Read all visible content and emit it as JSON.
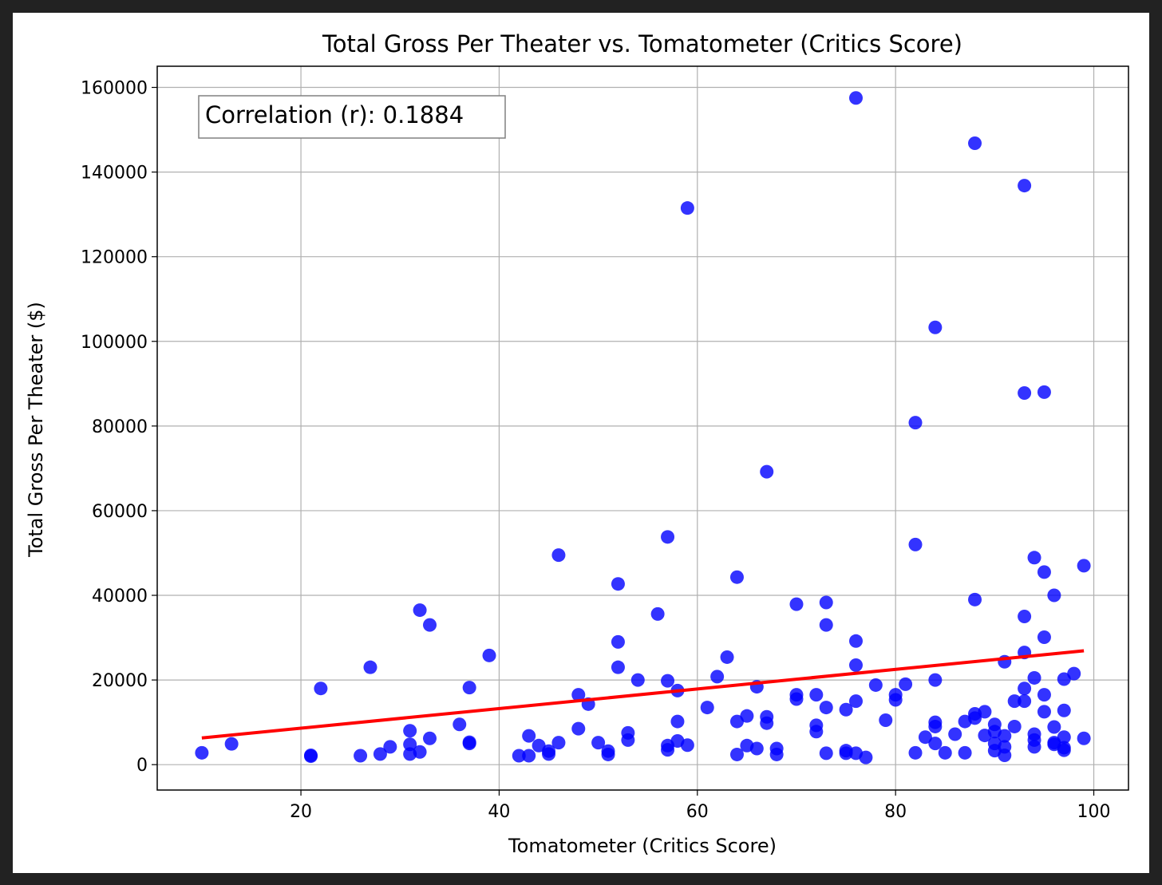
{
  "chart_data": {
    "type": "scatter",
    "title": "Total Gross Per Theater vs. Tomatometer (Critics Score)",
    "xlabel": "Tomatometer (Critics Score)",
    "ylabel": "Total Gross Per Theater ($)",
    "xlim": [
      5.5,
      103.5
    ],
    "ylim": [
      -6000,
      165000
    ],
    "xticks": [
      20,
      40,
      60,
      80,
      100
    ],
    "yticks": [
      0,
      20000,
      40000,
      60000,
      80000,
      100000,
      120000,
      140000,
      160000
    ],
    "grid": true,
    "annotation": "Correlation (r): 0.1884",
    "annotation_position": "top-left",
    "point_color": "#0000ff",
    "fit_color": "#ff0000",
    "fit_line": {
      "x": [
        10,
        99
      ],
      "y": [
        6300,
        26900
      ]
    },
    "points": [
      {
        "x": 10,
        "y": 2800
      },
      {
        "x": 13,
        "y": 4900
      },
      {
        "x": 21,
        "y": 2000
      },
      {
        "x": 21,
        "y": 2200
      },
      {
        "x": 22,
        "y": 18000
      },
      {
        "x": 26,
        "y": 2100
      },
      {
        "x": 27,
        "y": 23000
      },
      {
        "x": 28,
        "y": 2500
      },
      {
        "x": 29,
        "y": 4200
      },
      {
        "x": 31,
        "y": 8000
      },
      {
        "x": 31,
        "y": 4800
      },
      {
        "x": 31,
        "y": 2500
      },
      {
        "x": 32,
        "y": 3000
      },
      {
        "x": 32,
        "y": 36500
      },
      {
        "x": 33,
        "y": 33000
      },
      {
        "x": 33,
        "y": 6200
      },
      {
        "x": 36,
        "y": 9500
      },
      {
        "x": 37,
        "y": 18200
      },
      {
        "x": 37,
        "y": 5000
      },
      {
        "x": 37,
        "y": 5300
      },
      {
        "x": 39,
        "y": 25800
      },
      {
        "x": 42,
        "y": 2100
      },
      {
        "x": 43,
        "y": 2100
      },
      {
        "x": 43,
        "y": 6800
      },
      {
        "x": 44,
        "y": 4500
      },
      {
        "x": 45,
        "y": 2500
      },
      {
        "x": 45,
        "y": 3200
      },
      {
        "x": 46,
        "y": 5200
      },
      {
        "x": 46,
        "y": 49500
      },
      {
        "x": 48,
        "y": 16500
      },
      {
        "x": 48,
        "y": 8500
      },
      {
        "x": 49,
        "y": 14300
      },
      {
        "x": 50,
        "y": 5200
      },
      {
        "x": 51,
        "y": 3200
      },
      {
        "x": 51,
        "y": 2400
      },
      {
        "x": 52,
        "y": 42700
      },
      {
        "x": 52,
        "y": 29000
      },
      {
        "x": 52,
        "y": 23000
      },
      {
        "x": 53,
        "y": 7500
      },
      {
        "x": 53,
        "y": 5800
      },
      {
        "x": 54,
        "y": 20000
      },
      {
        "x": 56,
        "y": 35600
      },
      {
        "x": 57,
        "y": 53800
      },
      {
        "x": 57,
        "y": 19800
      },
      {
        "x": 57,
        "y": 4500
      },
      {
        "x": 57,
        "y": 3500
      },
      {
        "x": 58,
        "y": 17500
      },
      {
        "x": 58,
        "y": 10200
      },
      {
        "x": 58,
        "y": 5600
      },
      {
        "x": 59,
        "y": 4600
      },
      {
        "x": 59,
        "y": 131500
      },
      {
        "x": 61,
        "y": 13500
      },
      {
        "x": 62,
        "y": 20800
      },
      {
        "x": 63,
        "y": 25400
      },
      {
        "x": 64,
        "y": 44300
      },
      {
        "x": 64,
        "y": 10200
      },
      {
        "x": 64,
        "y": 2400
      },
      {
        "x": 65,
        "y": 11500
      },
      {
        "x": 65,
        "y": 4500
      },
      {
        "x": 66,
        "y": 18400
      },
      {
        "x": 66,
        "y": 3800
      },
      {
        "x": 67,
        "y": 69200
      },
      {
        "x": 67,
        "y": 11300
      },
      {
        "x": 67,
        "y": 9800
      },
      {
        "x": 68,
        "y": 3800
      },
      {
        "x": 68,
        "y": 2400
      },
      {
        "x": 70,
        "y": 37900
      },
      {
        "x": 70,
        "y": 16500
      },
      {
        "x": 70,
        "y": 15500
      },
      {
        "x": 72,
        "y": 16500
      },
      {
        "x": 72,
        "y": 9300
      },
      {
        "x": 72,
        "y": 7800
      },
      {
        "x": 73,
        "y": 38300
      },
      {
        "x": 73,
        "y": 33000
      },
      {
        "x": 73,
        "y": 13500
      },
      {
        "x": 73,
        "y": 2700
      },
      {
        "x": 75,
        "y": 13000
      },
      {
        "x": 75,
        "y": 3300
      },
      {
        "x": 75,
        "y": 2700
      },
      {
        "x": 76,
        "y": 157500
      },
      {
        "x": 76,
        "y": 29200
      },
      {
        "x": 76,
        "y": 23500
      },
      {
        "x": 76,
        "y": 15000
      },
      {
        "x": 76,
        "y": 2700
      },
      {
        "x": 77,
        "y": 1700
      },
      {
        "x": 78,
        "y": 18800
      },
      {
        "x": 79,
        "y": 10500
      },
      {
        "x": 80,
        "y": 16500
      },
      {
        "x": 80,
        "y": 15300
      },
      {
        "x": 81,
        "y": 19000
      },
      {
        "x": 82,
        "y": 80800
      },
      {
        "x": 82,
        "y": 52000
      },
      {
        "x": 82,
        "y": 2800
      },
      {
        "x": 83,
        "y": 6500
      },
      {
        "x": 84,
        "y": 103300
      },
      {
        "x": 84,
        "y": 20000
      },
      {
        "x": 84,
        "y": 10000
      },
      {
        "x": 84,
        "y": 9000
      },
      {
        "x": 84,
        "y": 5000
      },
      {
        "x": 85,
        "y": 2800
      },
      {
        "x": 86,
        "y": 7200
      },
      {
        "x": 87,
        "y": 10200
      },
      {
        "x": 87,
        "y": 2800
      },
      {
        "x": 88,
        "y": 146800
      },
      {
        "x": 88,
        "y": 39000
      },
      {
        "x": 88,
        "y": 12000
      },
      {
        "x": 88,
        "y": 11000
      },
      {
        "x": 89,
        "y": 12500
      },
      {
        "x": 89,
        "y": 6900
      },
      {
        "x": 90,
        "y": 9500
      },
      {
        "x": 90,
        "y": 7800
      },
      {
        "x": 90,
        "y": 5000
      },
      {
        "x": 90,
        "y": 3300
      },
      {
        "x": 91,
        "y": 24300
      },
      {
        "x": 91,
        "y": 6800
      },
      {
        "x": 91,
        "y": 4200
      },
      {
        "x": 91,
        "y": 2200
      },
      {
        "x": 92,
        "y": 15000
      },
      {
        "x": 92,
        "y": 9000
      },
      {
        "x": 93,
        "y": 136800
      },
      {
        "x": 93,
        "y": 87800
      },
      {
        "x": 93,
        "y": 35000
      },
      {
        "x": 93,
        "y": 26500
      },
      {
        "x": 93,
        "y": 18000
      },
      {
        "x": 93,
        "y": 15000
      },
      {
        "x": 94,
        "y": 48900
      },
      {
        "x": 94,
        "y": 20500
      },
      {
        "x": 94,
        "y": 7200
      },
      {
        "x": 94,
        "y": 5800
      },
      {
        "x": 94,
        "y": 4200
      },
      {
        "x": 95,
        "y": 88000
      },
      {
        "x": 95,
        "y": 45500
      },
      {
        "x": 95,
        "y": 30100
      },
      {
        "x": 95,
        "y": 16500
      },
      {
        "x": 95,
        "y": 12500
      },
      {
        "x": 96,
        "y": 40000
      },
      {
        "x": 96,
        "y": 8900
      },
      {
        "x": 96,
        "y": 5200
      },
      {
        "x": 96,
        "y": 4800
      },
      {
        "x": 97,
        "y": 20200
      },
      {
        "x": 97,
        "y": 12800
      },
      {
        "x": 97,
        "y": 6500
      },
      {
        "x": 97,
        "y": 4000
      },
      {
        "x": 97,
        "y": 3400
      },
      {
        "x": 98,
        "y": 21500
      },
      {
        "x": 99,
        "y": 47000
      },
      {
        "x": 99,
        "y": 6200
      }
    ]
  }
}
